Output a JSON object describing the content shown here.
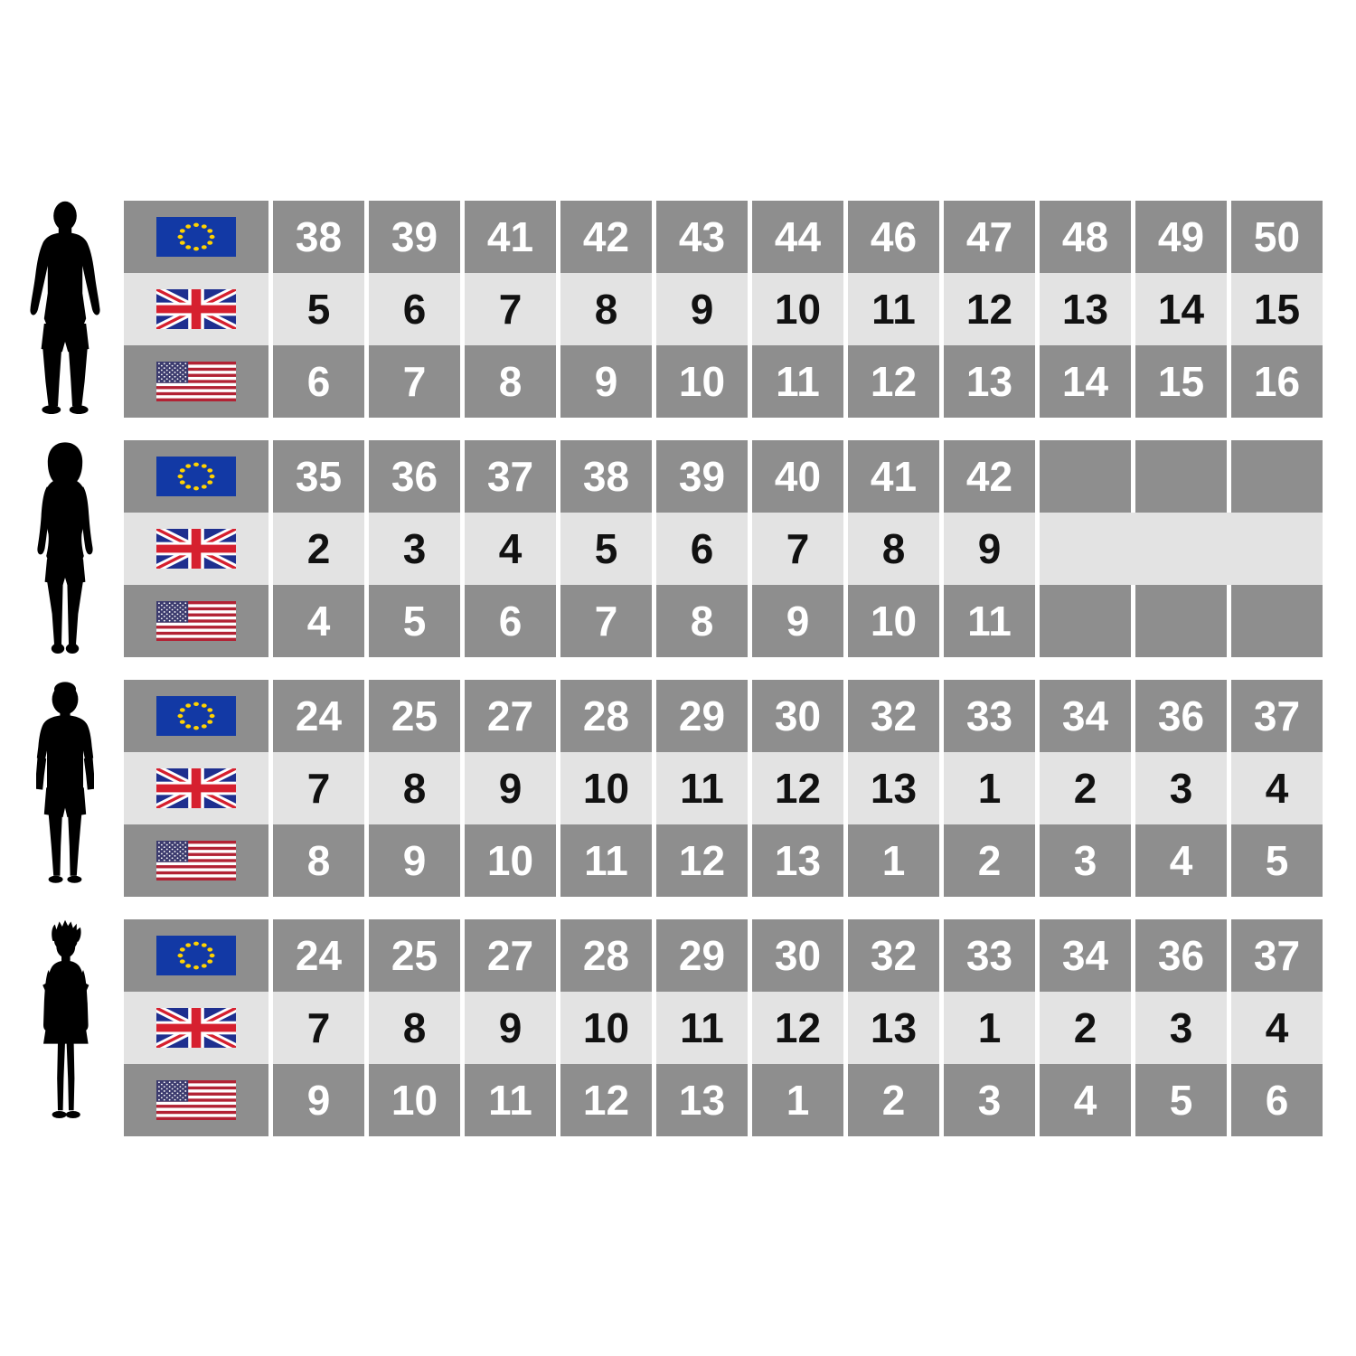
{
  "page_background": "#ffffff",
  "colors": {
    "row_dark": "#8e8e8e",
    "row_light": "#e3e3e3",
    "text_on_dark": "#ffffff",
    "text_on_light": "#111111",
    "gap": "#ffffff",
    "silhouette": "#000000",
    "eu_flag_blue": "#1239a5",
    "eu_flag_star_yellow": "#ffd200",
    "uk_flag_blue": "#1e2f8f",
    "uk_flag_red": "#d6202f",
    "us_flag_red": "#b22234",
    "us_flag_blue": "#3c3b6e"
  },
  "icons": {
    "eu": "eu-flag-icon",
    "uk": "uk-flag-icon",
    "us": "us-flag-icon",
    "silhouettes": [
      "man-silhouette",
      "woman-silhouette",
      "boy-silhouette",
      "girl-silhouette"
    ]
  },
  "chart_data": [
    {
      "type": "table",
      "group": "men",
      "rows": [
        {
          "region": "eu",
          "shade": "dark",
          "values": [
            38,
            39,
            41,
            42,
            43,
            44,
            46,
            47,
            48,
            49,
            50
          ]
        },
        {
          "region": "uk",
          "shade": "light",
          "values": [
            5,
            6,
            7,
            8,
            9,
            10,
            11,
            12,
            13,
            14,
            15
          ]
        },
        {
          "region": "us",
          "shade": "dark",
          "values": [
            6,
            7,
            8,
            9,
            10,
            11,
            12,
            13,
            14,
            15,
            16
          ]
        }
      ]
    },
    {
      "type": "table",
      "group": "women",
      "rows": [
        {
          "region": "eu",
          "shade": "dark",
          "values": [
            35,
            36,
            37,
            38,
            39,
            40,
            41,
            42
          ],
          "trailing": {
            "type": "cells",
            "count": 3
          }
        },
        {
          "region": "uk",
          "shade": "light",
          "values": [
            2,
            3,
            4,
            5,
            6,
            7,
            8,
            9
          ],
          "trailing": {
            "type": "band",
            "count": 3
          }
        },
        {
          "region": "us",
          "shade": "dark",
          "values": [
            4,
            5,
            6,
            7,
            8,
            9,
            10,
            11
          ],
          "trailing": {
            "type": "cells",
            "count": 3
          }
        }
      ]
    },
    {
      "type": "table",
      "group": "boys",
      "rows": [
        {
          "region": "eu",
          "shade": "dark",
          "values": [
            24,
            25,
            27,
            28,
            29,
            30,
            32,
            33,
            34,
            36,
            37
          ]
        },
        {
          "region": "uk",
          "shade": "light",
          "values": [
            7,
            8,
            9,
            10,
            11,
            12,
            13,
            1,
            2,
            3,
            4
          ]
        },
        {
          "region": "us",
          "shade": "dark",
          "values": [
            8,
            9,
            10,
            11,
            12,
            13,
            1,
            2,
            3,
            4,
            5
          ]
        }
      ]
    },
    {
      "type": "table",
      "group": "girls",
      "rows": [
        {
          "region": "eu",
          "shade": "dark",
          "values": [
            24,
            25,
            27,
            28,
            29,
            30,
            32,
            33,
            34,
            36,
            37
          ]
        },
        {
          "region": "uk",
          "shade": "light",
          "values": [
            7,
            8,
            9,
            10,
            11,
            12,
            13,
            1,
            2,
            3,
            4
          ]
        },
        {
          "region": "us",
          "shade": "dark",
          "values": [
            9,
            10,
            11,
            12,
            13,
            1,
            2,
            3,
            4,
            5,
            6
          ]
        }
      ]
    }
  ]
}
